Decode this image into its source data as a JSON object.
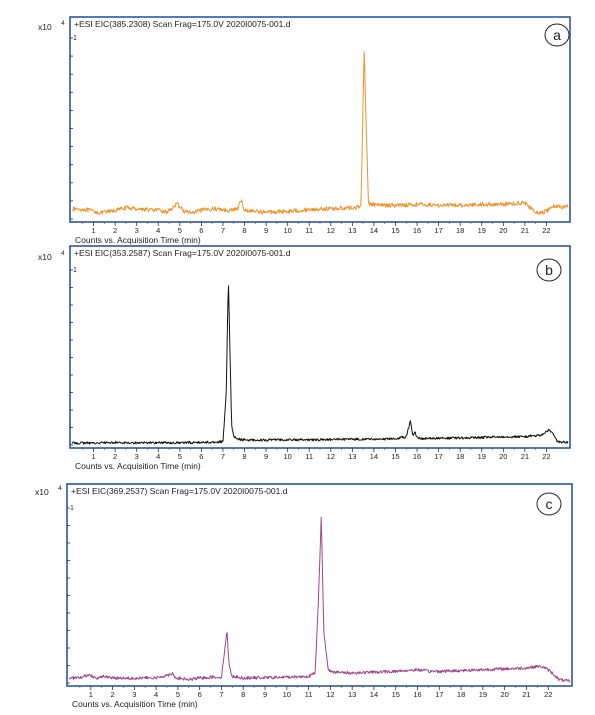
{
  "figure": {
    "panels": [
      {
        "letter": "a",
        "header": "+ESI EIC(385.2308) Scan Frag=175.0V 2020I0075-001.d",
        "y_exponent_label": "x10",
        "y_exponent_power": "4",
        "xlabel": "Counts vs. Acquisition Time (min)",
        "y_tick_label": "1",
        "color": "#f0922a"
      },
      {
        "letter": "b",
        "header": "+ESI EIC(353.2587) Scan Frag=175.0V 2020I0075-001.d",
        "y_exponent_label": "x10",
        "y_exponent_power": "4",
        "xlabel": "Counts vs. Acquisition Time (min)",
        "y_tick_label": "1",
        "color": "#111111"
      },
      {
        "letter": "c",
        "header": "+ESI EIC(369.2537) Scan Frag=175.0V 2020I0075-001.d",
        "y_exponent_label": "x10",
        "y_exponent_power": "4",
        "xlabel": "Counts vs. Acquisition Time (min)",
        "y_tick_label": "1",
        "color": "#a0458f"
      }
    ]
  },
  "chart_data": [
    {
      "type": "line",
      "title": "+ESI EIC(385.2308) Scan Frag=175.0V 2020I0075-001.d",
      "xlabel": "Counts vs. Acquisition Time (min)",
      "ylabel": "x10^4",
      "xlim": [
        0,
        23
      ],
      "ylim": [
        0,
        1.05
      ],
      "x_ticks": [
        1,
        2,
        3,
        4,
        5,
        6,
        7,
        8,
        9,
        10,
        11,
        12,
        13,
        14,
        15,
        16,
        17,
        18,
        19,
        20,
        21,
        22
      ],
      "baseline": 0.06,
      "noise": 0.012,
      "series": [
        {
          "color": "#f0922a",
          "x": [
            0,
            0.6,
            1.0,
            1.3,
            1.6,
            2.0,
            2.5,
            3.0,
            3.5,
            4.0,
            4.4,
            4.7,
            4.9,
            5.2,
            5.6,
            6.0,
            6.5,
            7.0,
            7.3,
            7.7,
            7.85,
            8.0,
            8.5,
            9.0,
            10,
            11,
            12,
            13,
            13.4,
            13.55,
            13.65,
            13.75,
            13.9,
            14.2,
            15,
            16,
            17,
            18,
            19,
            20,
            20.5,
            21,
            21.3,
            21.6,
            22.0,
            22.3,
            22.7,
            23
          ],
          "values": [
            0.06,
            0.055,
            0.045,
            0.035,
            0.04,
            0.05,
            0.065,
            0.06,
            0.055,
            0.05,
            0.04,
            0.07,
            0.085,
            0.045,
            0.035,
            0.05,
            0.06,
            0.055,
            0.05,
            0.06,
            0.11,
            0.05,
            0.045,
            0.04,
            0.045,
            0.055,
            0.06,
            0.065,
            0.07,
            1.0,
            0.5,
            0.09,
            0.085,
            0.08,
            0.08,
            0.085,
            0.08,
            0.08,
            0.085,
            0.085,
            0.09,
            0.095,
            0.06,
            0.03,
            0.045,
            0.075,
            0.07,
            0.075
          ]
        }
      ]
    },
    {
      "type": "line",
      "title": "+ESI EIC(353.2587) Scan Frag=175.0V 2020I0075-001.d",
      "xlabel": "Counts vs. Acquisition Time (min)",
      "ylabel": "x10^4",
      "xlim": [
        0,
        23
      ],
      "ylim": [
        0,
        1.05
      ],
      "x_ticks": [
        1,
        2,
        3,
        4,
        5,
        6,
        7,
        8,
        9,
        10,
        11,
        12,
        13,
        14,
        15,
        16,
        17,
        18,
        19,
        20,
        21,
        22
      ],
      "baseline": 0.012,
      "noise": 0.007,
      "series": [
        {
          "color": "#111111",
          "x": [
            0,
            1,
            2,
            3,
            4,
            5,
            6,
            6.5,
            7.0,
            7.15,
            7.25,
            7.32,
            7.4,
            7.5,
            7.7,
            8.0,
            9,
            10,
            11,
            12,
            13,
            14,
            15,
            15.5,
            15.7,
            15.8,
            15.9,
            16.0,
            16.2,
            17,
            18,
            19,
            20,
            21,
            21.8,
            22.1,
            22.3,
            22.5,
            23
          ],
          "values": [
            0.012,
            0.012,
            0.015,
            0.013,
            0.014,
            0.013,
            0.016,
            0.017,
            0.02,
            0.3,
            1.0,
            0.6,
            0.12,
            0.05,
            0.035,
            0.03,
            0.03,
            0.032,
            0.03,
            0.033,
            0.035,
            0.035,
            0.037,
            0.05,
            0.15,
            0.05,
            0.08,
            0.045,
            0.04,
            0.04,
            0.042,
            0.045,
            0.05,
            0.05,
            0.06,
            0.09,
            0.07,
            0.02,
            0.015
          ]
        }
      ]
    },
    {
      "type": "line",
      "title": "+ESI EIC(369.2537) Scan Frag=175.0V 2020I0075-001.d",
      "xlabel": "Counts vs. Acquisition Time (min)",
      "ylabel": "x10^4",
      "xlim": [
        0,
        23
      ],
      "ylim": [
        0,
        1.05
      ],
      "x_ticks": [
        1,
        2,
        3,
        4,
        5,
        6,
        7,
        8,
        9,
        10,
        11,
        12,
        13,
        14,
        15,
        16,
        17,
        18,
        19,
        20,
        21,
        22
      ],
      "baseline": 0.03,
      "noise": 0.009,
      "series": [
        {
          "color": "#a0458f",
          "x": [
            0,
            0.5,
            0.9,
            1.3,
            1.6,
            2,
            3,
            4,
            4.6,
            4.75,
            4.9,
            5.5,
            6,
            6.5,
            7.0,
            7.15,
            7.25,
            7.35,
            7.5,
            8,
            9,
            10,
            11,
            11.3,
            11.45,
            11.58,
            11.7,
            11.9,
            12.2,
            13,
            14,
            15,
            15.5,
            16,
            16.5,
            17,
            18,
            19,
            20,
            21,
            21.5,
            21.8,
            22.1,
            22.5,
            23
          ],
          "values": [
            0.03,
            0.03,
            0.05,
            0.03,
            0.04,
            0.03,
            0.03,
            0.03,
            0.05,
            0.06,
            0.03,
            0.02,
            0.03,
            0.035,
            0.035,
            0.2,
            0.32,
            0.1,
            0.04,
            0.03,
            0.032,
            0.035,
            0.04,
            0.06,
            0.5,
            1.0,
            0.3,
            0.08,
            0.065,
            0.06,
            0.065,
            0.07,
            0.075,
            0.08,
            0.07,
            0.07,
            0.075,
            0.08,
            0.085,
            0.09,
            0.1,
            0.095,
            0.07,
            0.02,
            0.01
          ]
        }
      ]
    }
  ]
}
